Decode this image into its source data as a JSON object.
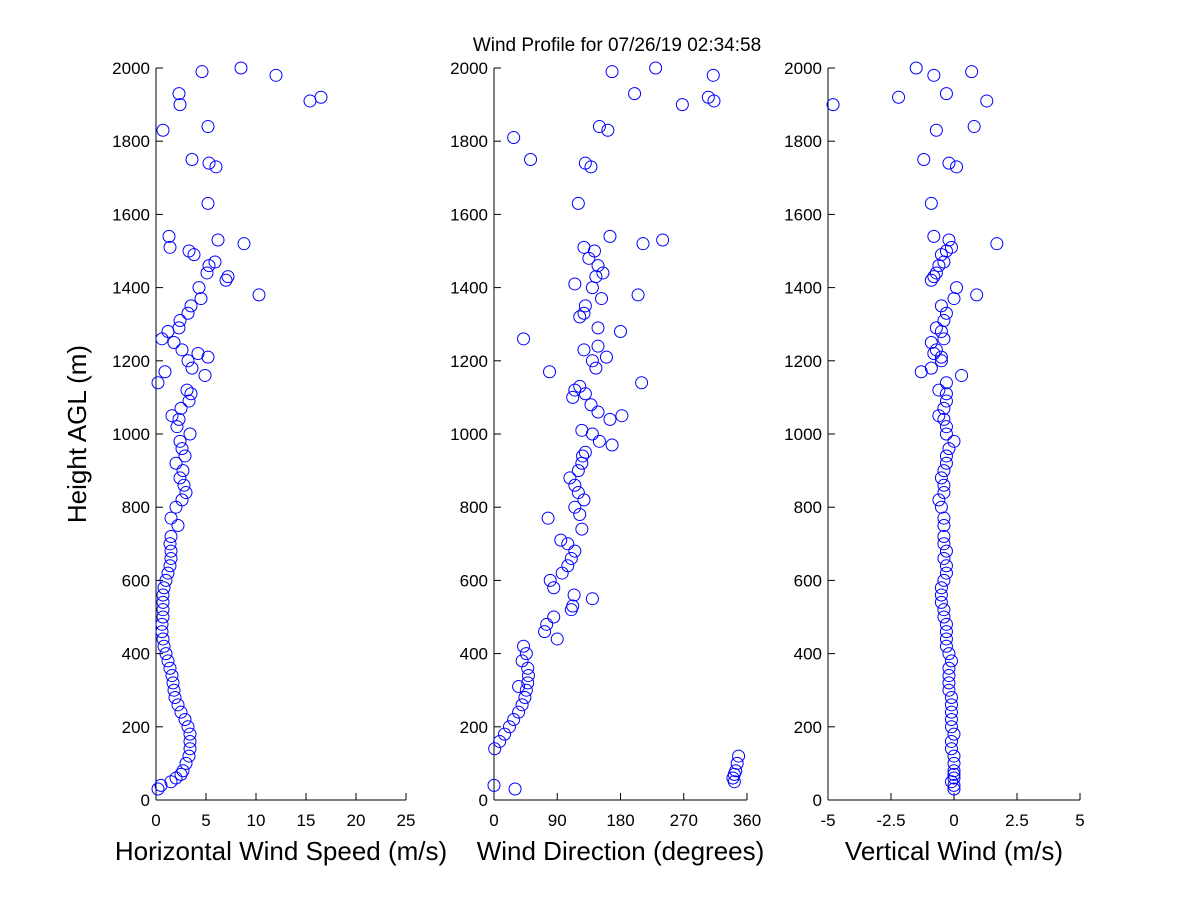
{
  "title": "Wind Profile for  07/26/19 02:34:58",
  "chart_data": [
    {
      "type": "scatter",
      "x_label": "Horizontal Wind Speed (m/s)",
      "y_label": "Height AGL (m)",
      "xlim": [
        0,
        25
      ],
      "xticks": [
        0,
        5,
        10,
        15,
        20,
        25
      ],
      "ylim": [
        0,
        2000
      ],
      "yticks": [
        0,
        200,
        400,
        600,
        800,
        1000,
        1200,
        1400,
        1600,
        1800,
        2000
      ],
      "series": [
        {
          "color": "#0000ff",
          "x": [
            0.2,
            0.5,
            1.5,
            2.0,
            2.5,
            2.7,
            3.0,
            3.3,
            3.4,
            3.4,
            3.4,
            3.2,
            2.9,
            2.5,
            2.2,
            1.9,
            1.8,
            1.7,
            1.6,
            1.4,
            1.2,
            1.0,
            0.8,
            0.7,
            0.6,
            0.6,
            0.7,
            0.7,
            0.7,
            0.7,
            0.8,
            1.0,
            1.2,
            1.4,
            1.5,
            1.5,
            1.4,
            1.5,
            2.2,
            1.5,
            2.0,
            2.6,
            3.0,
            2.8,
            2.4,
            2.7,
            2.0,
            2.9,
            2.6,
            2.4,
            3.4,
            2.1,
            2.3,
            1.6,
            2.5,
            3.3,
            3.5,
            3.1,
            0.2,
            4.9,
            0.9,
            3.6,
            3.2,
            5.2,
            4.2,
            2.6,
            1.8,
            0.6,
            1.2,
            2.3,
            2.4,
            3.2,
            3.5,
            4.5,
            10.3,
            4.3,
            7.0,
            7.2,
            5.1,
            5.3,
            5.9,
            3.8,
            3.3,
            1.4,
            8.8,
            6.2,
            1.3,
            5.2,
            6.0,
            5.3,
            3.6,
            0.7,
            5.2,
            2.4,
            15.4,
            16.5,
            2.3,
            12.0,
            4.6,
            8.5
          ],
          "values": [
            30,
            40,
            50,
            60,
            70,
            80,
            100,
            120,
            140,
            160,
            180,
            200,
            220,
            240,
            260,
            280,
            300,
            320,
            340,
            360,
            380,
            400,
            420,
            440,
            460,
            480,
            500,
            520,
            540,
            560,
            580,
            600,
            620,
            640,
            660,
            680,
            700,
            720,
            750,
            770,
            800,
            820,
            840,
            860,
            880,
            900,
            920,
            940,
            960,
            980,
            1000,
            1020,
            1040,
            1050,
            1070,
            1090,
            1110,
            1120,
            1140,
            1160,
            1170,
            1180,
            1200,
            1210,
            1220,
            1230,
            1250,
            1260,
            1280,
            1290,
            1310,
            1330,
            1350,
            1370,
            1380,
            1400,
            1420,
            1430,
            1440,
            1460,
            1470,
            1490,
            1500,
            1510,
            1520,
            1530,
            1540,
            1630,
            1730,
            1740,
            1750,
            1830,
            1840,
            1900,
            1910,
            1920,
            1930,
            1980,
            1990,
            2000
          ]
        }
      ]
    },
    {
      "type": "scatter",
      "x_label": "Wind Direction (degrees)",
      "xlim": [
        0,
        360
      ],
      "xticks": [
        0,
        90,
        180,
        270,
        360
      ],
      "ylim": [
        0,
        2000
      ],
      "yticks": [
        0,
        200,
        400,
        600,
        800,
        1000,
        1200,
        1400,
        1600,
        1800,
        2000
      ],
      "series": [
        {
          "color": "#0000ff",
          "x": [
            30,
            0,
            342,
            340,
            342,
            344,
            346,
            348,
            1,
            8,
            15,
            22,
            28,
            35,
            40,
            44,
            46,
            35,
            48,
            49,
            48,
            40,
            46,
            42,
            90,
            72,
            75,
            85,
            110,
            112,
            140,
            114,
            85,
            80,
            97,
            105,
            110,
            115,
            105,
            95,
            125,
            77,
            122,
            115,
            128,
            120,
            115,
            108,
            120,
            125,
            126,
            130,
            168,
            150,
            140,
            125,
            165,
            182,
            148,
            138,
            112,
            130,
            115,
            122,
            210,
            79,
            145,
            140,
            160,
            128,
            148,
            42,
            180,
            148,
            122,
            128,
            130,
            153,
            205,
            140,
            115,
            145,
            155,
            148,
            135,
            143,
            128,
            212,
            240,
            165,
            120,
            138,
            130,
            52,
            28,
            162,
            150,
            268,
            313,
            305,
            200,
            312,
            168,
            230
          ],
          "values": [
            30,
            40,
            50,
            60,
            70,
            80,
            100,
            120,
            140,
            160,
            180,
            200,
            220,
            240,
            260,
            280,
            300,
            310,
            320,
            340,
            360,
            380,
            400,
            420,
            440,
            460,
            480,
            500,
            520,
            530,
            550,
            560,
            580,
            600,
            620,
            640,
            660,
            680,
            700,
            710,
            740,
            770,
            780,
            800,
            820,
            840,
            860,
            880,
            900,
            920,
            940,
            950,
            970,
            980,
            1000,
            1010,
            1040,
            1050,
            1060,
            1080,
            1100,
            1110,
            1120,
            1130,
            1140,
            1170,
            1180,
            1200,
            1210,
            1230,
            1240,
            1260,
            1280,
            1290,
            1320,
            1330,
            1350,
            1370,
            1380,
            1400,
            1410,
            1430,
            1440,
            1460,
            1480,
            1500,
            1510,
            1520,
            1530,
            1540,
            1630,
            1730,
            1740,
            1750,
            1810,
            1830,
            1840,
            1900,
            1910,
            1920,
            1930,
            1980,
            1990,
            2000
          ]
        }
      ]
    },
    {
      "type": "scatter",
      "x_label": "Vertical Wind (m/s)",
      "xlim": [
        -5,
        5
      ],
      "xticks": [
        -5,
        -2.5,
        0,
        2.5,
        5
      ],
      "ylim": [
        0,
        2000
      ],
      "yticks": [
        0,
        200,
        400,
        600,
        800,
        1000,
        1200,
        1400,
        1600,
        1800,
        2000
      ],
      "series": [
        {
          "color": "#0000ff",
          "x": [
            0.0,
            0.0,
            -0.1,
            0.0,
            0.0,
            0.0,
            0.0,
            0.0,
            -0.1,
            -0.1,
            0.0,
            -0.1,
            -0.1,
            -0.1,
            -0.1,
            -0.1,
            -0.2,
            -0.2,
            -0.2,
            -0.2,
            -0.1,
            -0.2,
            -0.3,
            -0.3,
            -0.3,
            -0.3,
            -0.4,
            -0.4,
            -0.5,
            -0.5,
            -0.5,
            -0.4,
            -0.3,
            -0.3,
            -0.4,
            -0.3,
            -0.4,
            -0.4,
            -0.4,
            -0.4,
            -0.5,
            -0.6,
            -0.4,
            -0.4,
            -0.5,
            -0.4,
            -0.3,
            -0.3,
            -0.2,
            0.0,
            -0.3,
            -0.3,
            -0.4,
            -0.6,
            -0.4,
            -0.3,
            -0.3,
            -0.6,
            -0.3,
            0.3,
            -1.3,
            -0.9,
            -0.5,
            -0.5,
            -0.8,
            -0.7,
            -0.9,
            -0.4,
            -0.5,
            -0.7,
            -0.4,
            -0.3,
            -0.5,
            0.0,
            0.9,
            0.1,
            -0.9,
            -0.8,
            -0.7,
            -0.6,
            -0.4,
            -0.5,
            -0.3,
            -0.1,
            1.7,
            -0.2,
            -0.8,
            -0.9,
            0.1,
            -0.2,
            -1.2,
            -0.7,
            0.8,
            -4.8,
            1.3,
            -2.2,
            -0.3,
            -0.8,
            0.7,
            -1.5
          ],
          "values": [
            30,
            40,
            50,
            60,
            70,
            80,
            100,
            120,
            140,
            160,
            180,
            200,
            220,
            240,
            260,
            280,
            300,
            320,
            340,
            360,
            380,
            400,
            420,
            440,
            460,
            480,
            500,
            520,
            540,
            560,
            580,
            600,
            620,
            640,
            660,
            680,
            700,
            720,
            750,
            770,
            800,
            820,
            840,
            860,
            880,
            900,
            920,
            940,
            960,
            980,
            1000,
            1020,
            1040,
            1050,
            1070,
            1090,
            1110,
            1120,
            1140,
            1160,
            1170,
            1180,
            1200,
            1210,
            1220,
            1230,
            1250,
            1260,
            1280,
            1290,
            1310,
            1330,
            1350,
            1370,
            1380,
            1400,
            1420,
            1430,
            1440,
            1460,
            1470,
            1490,
            1500,
            1510,
            1520,
            1530,
            1540,
            1630,
            1730,
            1740,
            1750,
            1830,
            1840,
            1900,
            1910,
            1920,
            1930,
            1980,
            1990,
            2000
          ]
        }
      ]
    }
  ]
}
